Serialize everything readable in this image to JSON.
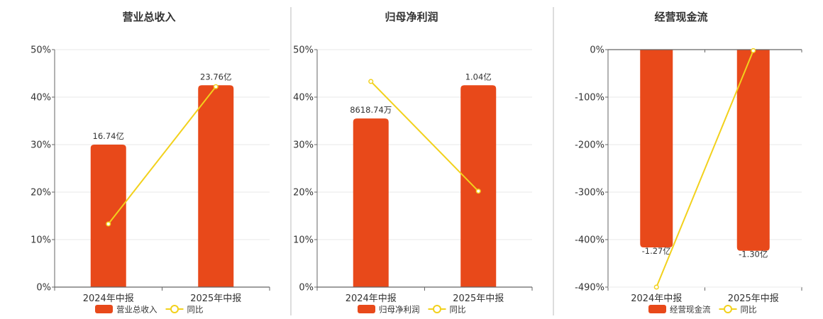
{
  "chart_data": [
    {
      "type": "bar",
      "title": "营业总收入",
      "categories": [
        "2024年中报",
        "2025年中报"
      ],
      "series": [
        {
          "name": "营业总收入",
          "kind": "bar",
          "values": [
            30,
            42.5
          ],
          "labels": [
            "16.74亿",
            "23.76亿"
          ]
        },
        {
          "name": "同比",
          "kind": "line",
          "values": [
            13.3,
            42.2
          ]
        }
      ],
      "yticks": [
        "0%",
        "10%",
        "20%",
        "30%",
        "40%",
        "50%"
      ],
      "ylim": [
        0,
        50
      ],
      "grid": true,
      "legend": "bottom",
      "colors": {
        "bar": "#E8491A",
        "line": "#F2D11C"
      }
    },
    {
      "type": "bar",
      "title": "归母净利润",
      "categories": [
        "2024年中报",
        "2025年中报"
      ],
      "series": [
        {
          "name": "归母净利润",
          "kind": "bar",
          "values": [
            35.5,
            42.5
          ],
          "labels": [
            "8618.74万",
            "1.04亿"
          ]
        },
        {
          "name": "同比",
          "kind": "line",
          "values": [
            43.3,
            20.2
          ]
        }
      ],
      "yticks": [
        "0%",
        "10%",
        "20%",
        "30%",
        "40%",
        "50%"
      ],
      "ylim": [
        0,
        50
      ],
      "grid": true,
      "legend": "bottom",
      "colors": {
        "bar": "#E8491A",
        "line": "#F2D11C"
      }
    },
    {
      "type": "bar",
      "title": "经营现金流",
      "categories": [
        "2024年中报",
        "2025年中报"
      ],
      "series": [
        {
          "name": "经营现金流",
          "kind": "bar",
          "values": [
            -408,
            -415
          ],
          "labels": [
            "-1.27亿",
            "-1.30亿"
          ]
        },
        {
          "name": "同比",
          "kind": "line",
          "values": [
            -490,
            -2
          ]
        }
      ],
      "yticks": [
        "0%",
        "-100%",
        "-200%",
        "-300%",
        "-400%",
        "-490%"
      ],
      "ylim": [
        -490,
        0
      ],
      "grid": true,
      "legend": "bottom",
      "colors": {
        "bar": "#E8491A",
        "line": "#F2D11C"
      }
    }
  ]
}
